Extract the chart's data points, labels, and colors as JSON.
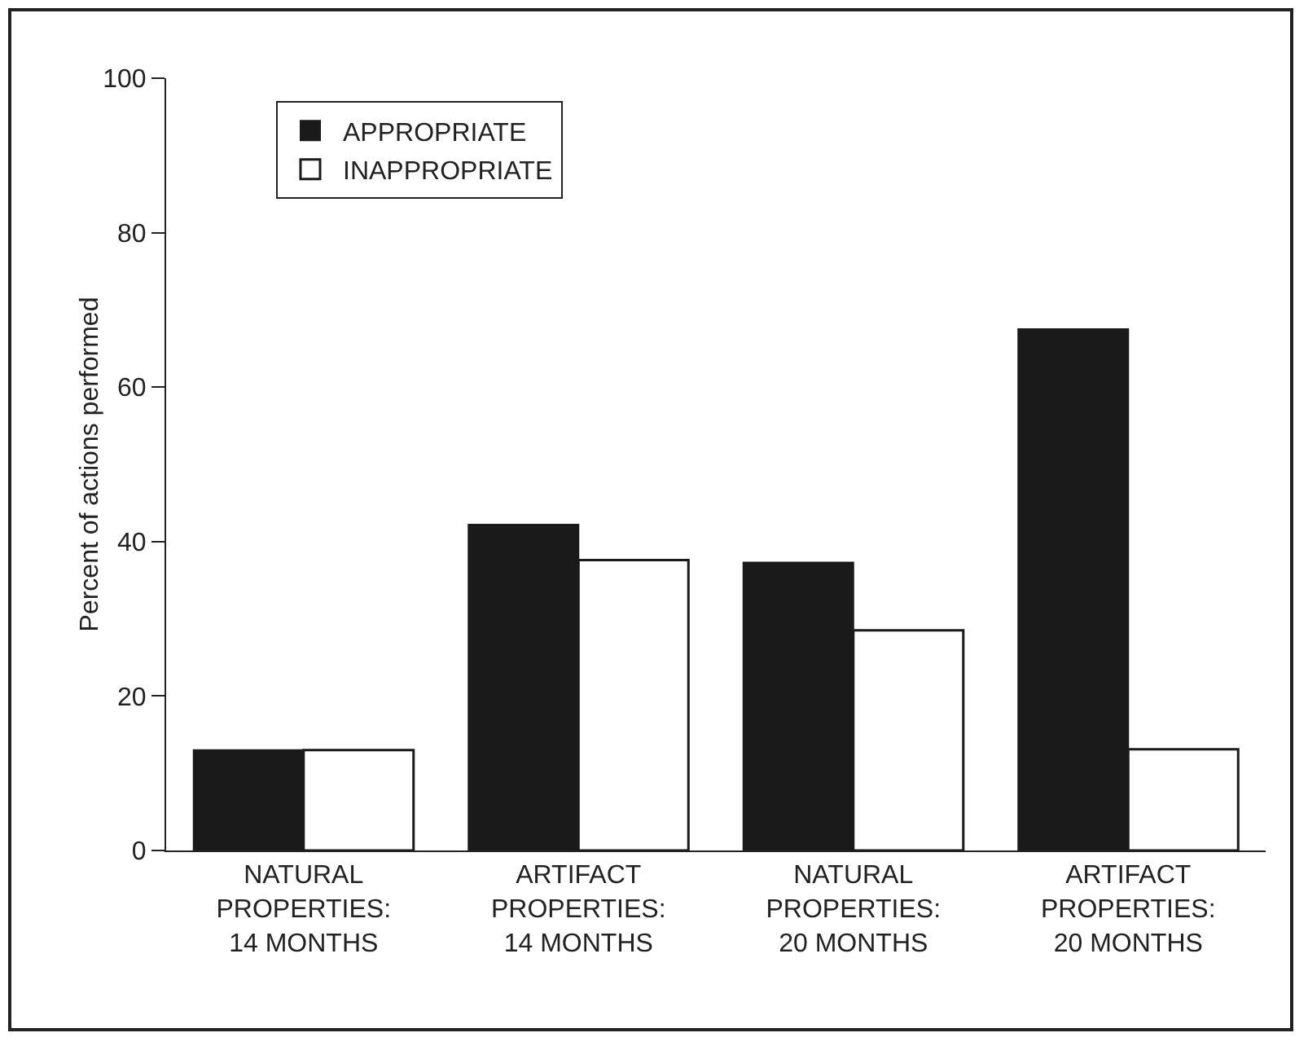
{
  "chart_data": {
    "type": "bar",
    "ylabel": "Percent of actions performed",
    "categories": [
      "NATURAL\nPROPERTIES:\n14 MONTHS",
      "ARTIFACT\nPROPERTIES:\n14 MONTHS",
      "NATURAL\nPROPERTIES:\n20 MONTHS",
      "ARTIFACT\nPROPERTIES:\n20 MONTHS"
    ],
    "series": [
      {
        "name": "APPROPRIATE",
        "color": "#1a1a1a",
        "values": [
          13,
          42.2,
          37.3,
          67.5
        ]
      },
      {
        "name": "INAPPROPRIATE",
        "color": "#ffffff",
        "values": [
          13,
          37.6,
          28.5,
          13.1
        ]
      }
    ],
    "ylim": [
      0,
      100
    ],
    "yticks": [
      0,
      20,
      40,
      60,
      80,
      100
    ],
    "grid": false,
    "legend": "top left"
  }
}
